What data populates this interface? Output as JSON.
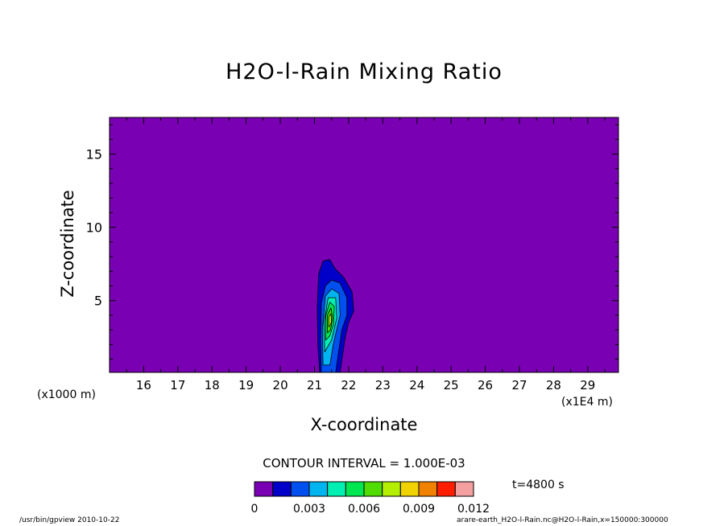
{
  "chart_data": {
    "type": "heatmap",
    "title": "H2O-l-Rain Mixing Ratio",
    "xlabel": "X-coordinate",
    "ylabel": "Z-coordinate",
    "x_unit": "(x1E4 m)",
    "y_unit": "(x1000 m)",
    "xlim": [
      15,
      29.9
    ],
    "ylim": [
      0.1,
      17.5
    ],
    "x_ticks": [
      16,
      17,
      18,
      19,
      20,
      21,
      22,
      23,
      24,
      25,
      26,
      27,
      28,
      29
    ],
    "y_ticks": [
      5,
      10,
      15
    ],
    "contour_interval": "CONTOUR INTERVAL = 1.000E-03",
    "time_label": "t=4800 s",
    "colorbar": {
      "levels": [
        0,
        0.001,
        0.002,
        0.003,
        0.004,
        0.005,
        0.006,
        0.007,
        0.008,
        0.009,
        0.01,
        0.011,
        0.012
      ],
      "tick_labels": [
        "0",
        "0.003",
        "0.006",
        "0.009",
        "0.012"
      ],
      "tick_values": [
        0,
        0.003,
        0.006,
        0.009,
        0.012
      ],
      "colors": [
        "#7a00b4",
        "#0000c8",
        "#0050f0",
        "#00b4f0",
        "#00f0b4",
        "#00e650",
        "#50dc00",
        "#b4ee00",
        "#f0d200",
        "#f08200",
        "#ff1e00",
        "#f5a0a0"
      ]
    },
    "background_color": "#7a00b4",
    "regions": [
      {
        "level": 1,
        "points": [
          [
            21.15,
            0.1
          ],
          [
            21.1,
            2.0
          ],
          [
            21.08,
            4.5
          ],
          [
            21.12,
            6.8
          ],
          [
            21.25,
            7.7
          ],
          [
            21.45,
            7.8
          ],
          [
            21.6,
            7.2
          ],
          [
            21.85,
            6.6
          ],
          [
            22.1,
            5.6
          ],
          [
            22.15,
            4.3
          ],
          [
            22.0,
            3.5
          ],
          [
            21.9,
            2.5
          ],
          [
            21.75,
            0.1
          ]
        ]
      },
      {
        "level": 2,
        "points": [
          [
            21.2,
            0.1
          ],
          [
            21.18,
            2.2
          ],
          [
            21.2,
            4.8
          ],
          [
            21.32,
            6.0
          ],
          [
            21.5,
            6.4
          ],
          [
            21.75,
            6.2
          ],
          [
            21.95,
            5.2
          ],
          [
            21.95,
            4.0
          ],
          [
            21.8,
            3.0
          ],
          [
            21.62,
            0.1
          ]
        ]
      },
      {
        "level": 3,
        "points": [
          [
            21.25,
            0.6
          ],
          [
            21.23,
            3.0
          ],
          [
            21.32,
            5.3
          ],
          [
            21.5,
            5.8
          ],
          [
            21.72,
            5.5
          ],
          [
            21.75,
            4.0
          ],
          [
            21.55,
            2.0
          ],
          [
            21.45,
            0.6
          ]
        ]
      },
      {
        "level": 4,
        "points": [
          [
            21.3,
            1.5
          ],
          [
            21.28,
            3.5
          ],
          [
            21.4,
            5.2
          ],
          [
            21.62,
            5.2
          ],
          [
            21.65,
            3.8
          ],
          [
            21.5,
            2.3
          ]
        ]
      },
      {
        "level": 5,
        "points": [
          [
            21.33,
            2.3
          ],
          [
            21.33,
            4.0
          ],
          [
            21.45,
            4.9
          ],
          [
            21.58,
            4.6
          ],
          [
            21.56,
            3.4
          ],
          [
            21.45,
            2.6
          ]
        ]
      },
      {
        "level": 6,
        "points": [
          [
            21.38,
            2.8
          ],
          [
            21.38,
            4.0
          ],
          [
            21.48,
            4.5
          ],
          [
            21.53,
            3.8
          ],
          [
            21.47,
            3.0
          ]
        ]
      },
      {
        "level": 7,
        "points": [
          [
            21.42,
            3.2
          ],
          [
            21.42,
            3.9
          ],
          [
            21.48,
            4.1
          ],
          [
            21.5,
            3.6
          ],
          [
            21.46,
            3.3
          ]
        ]
      }
    ]
  },
  "footer_left": "/usr/bin/gpview  2010-10-22",
  "footer_right": "arare-earth_H2O-l-Rain.nc@H2O-l-Rain,x=150000:300000"
}
